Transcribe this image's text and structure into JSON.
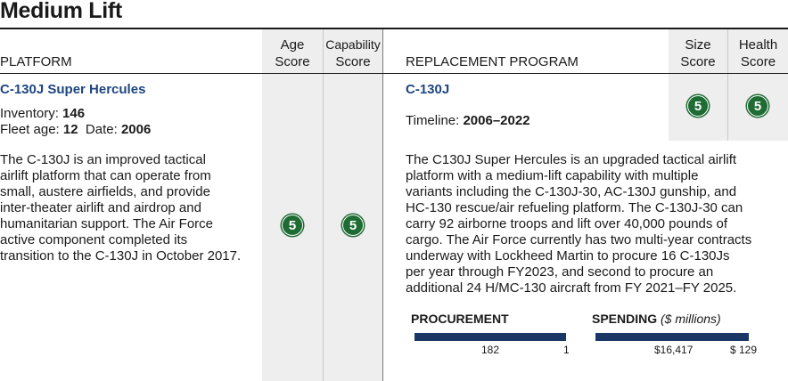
{
  "page": {
    "title": "Medium Lift"
  },
  "header": {
    "platform": "PLATFORM",
    "age_score_line1": "Age",
    "age_score_line2": "Score",
    "capability_score_line1": "Capability",
    "capability_score_line2": "Score",
    "replacement_program": "REPLACEMENT PROGRAM",
    "size_score_line1": "Size",
    "size_score_line2": "Score",
    "health_score_line1": "Health",
    "health_score_line2": "Score"
  },
  "platform": {
    "name": "C-130J Super Hercules",
    "inventory_label": "Inventory:",
    "inventory_value": "146",
    "fleet_age_label": "Fleet age:",
    "fleet_age_value": "12",
    "date_label": "Date:",
    "date_value": "2006",
    "description_lines": [
      "The C-130J is an improved tactical",
      "airlift platform that can operate from",
      "small, austere airfields, and provide",
      "inter-theater airlift and airdrop and",
      "humanitarian support. The Air Force",
      "active component completed its",
      "transition to the C-130J in October 2017."
    ],
    "age_score": "5",
    "capability_score": "5"
  },
  "replacement": {
    "name": "C-130J",
    "timeline_label": "Timeline:",
    "timeline_value": "2006–2022",
    "size_score": "5",
    "health_score": "5",
    "description_lines": [
      "The C130J Super Hercules is an upgraded tactical airlift",
      "platform with a medium-lift capability with multiple",
      "variants including the C-130J-30, AC-130J gunship, and",
      "HC-130 rescue/air refueling platform. The C-130J-30 can",
      "carry 92 airborne troops and lift over 40,000 pounds of",
      "cargo. The Air Force currently has two multi-year contracts",
      "underway with Lockheed Martin to procure 16 C-130Js",
      "per year through FY2023, and second to procure an",
      "additional 24 H/MC-130 aircraft from FY 2021–FY 2025."
    ],
    "procurement": {
      "label": "PROCUREMENT",
      "left_value": "182",
      "right_value": "1"
    },
    "spending": {
      "label": "SPENDING",
      "unit_label": "($ millions)",
      "left_value": "$16,417",
      "right_value": "$ 129"
    }
  },
  "colors": {
    "title_blue": "#1d4580",
    "score_green": "#1e6b34",
    "bar_navy": "#1b3766",
    "shade_gray": "#eeeeee"
  }
}
